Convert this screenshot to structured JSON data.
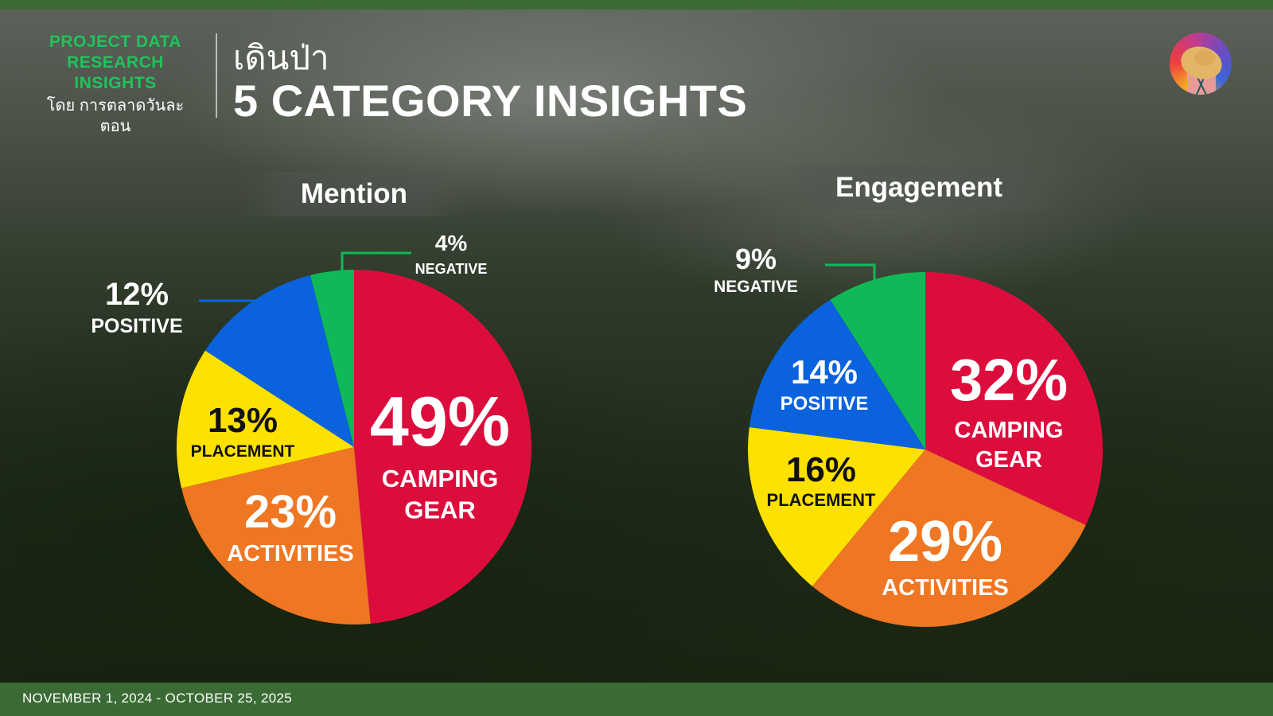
{
  "header": {
    "brand_lines": [
      "PROJECT DATA",
      "RESEARCH",
      "INSIGHTS"
    ],
    "brand_by": "โดย การตลาดวันละตอน",
    "title_thai": "เดินป่า",
    "title": "5 CATEGORY INSIGHTS"
  },
  "footer": {
    "date_range": "NOVEMBER 1, 2024 - OCTOBER 25, 2025"
  },
  "colors": {
    "camping_gear": "#dc0d3c",
    "activities": "#ef7622",
    "placement": "#fde100",
    "positive": "#0a62dc",
    "negative": "#10b957",
    "brand_green": "#1fc35c",
    "bar": "#3b6b35"
  },
  "chart_data": [
    {
      "type": "pie",
      "title": "Mention",
      "categories": [
        "CAMPING GEAR",
        "ACTIVITIES",
        "PLACEMENT",
        "POSITIVE",
        "NEGATIVE"
      ],
      "values": [
        49,
        23,
        13,
        12,
        4
      ],
      "labels": [
        "49%",
        "23%",
        "13%",
        "12%",
        "4%"
      ]
    },
    {
      "type": "pie",
      "title": "Engagement",
      "categories": [
        "CAMPING GEAR",
        "ACTIVITIES",
        "PLACEMENT",
        "POSITIVE",
        "NEGATIVE"
      ],
      "values": [
        32,
        29,
        16,
        14,
        9
      ],
      "labels": [
        "32%",
        "29%",
        "16%",
        "14%",
        "9%"
      ]
    }
  ]
}
